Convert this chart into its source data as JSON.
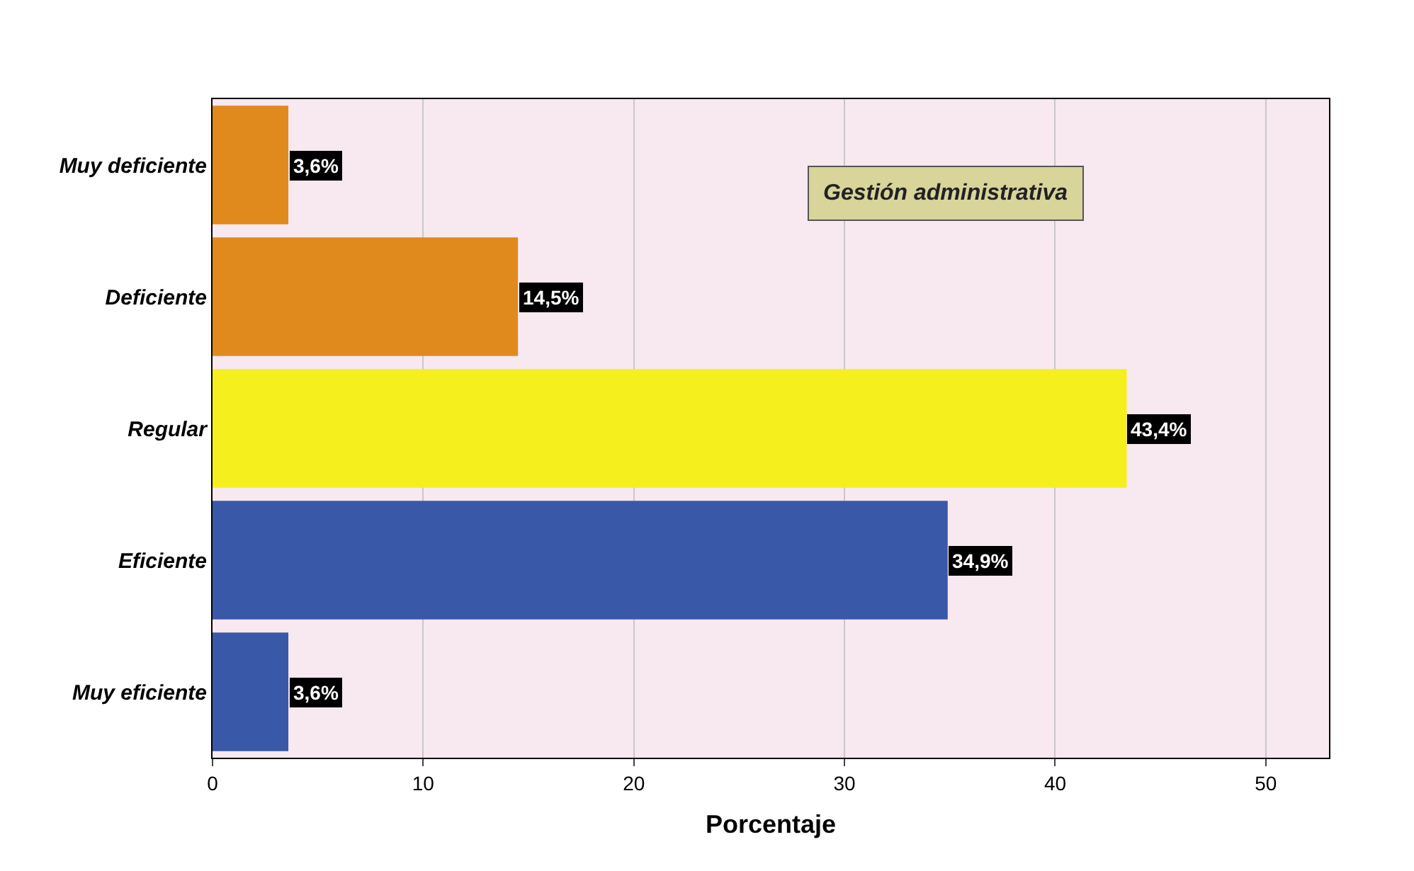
{
  "chart_data": {
    "type": "bar",
    "orientation": "horizontal",
    "xlabel": "Porcentaje",
    "categories": [
      "Muy deficiente",
      "Deficiente",
      "Regular",
      "Eficiente",
      "Muy eficiente"
    ],
    "values": [
      3.6,
      14.5,
      43.4,
      34.9,
      3.6
    ],
    "value_labels": [
      "3,6%",
      "14,5%",
      "43,4%",
      "34,9%",
      "3,6%"
    ],
    "colors": [
      "#e08a1e",
      "#e08a1e",
      "#f5ef1e",
      "#3a58a8",
      "#3a58a8"
    ],
    "xlim": [
      0,
      53
    ],
    "xticks": [
      0,
      10,
      20,
      30,
      40,
      50
    ],
    "grid": "x",
    "legend": false,
    "annotations": [
      "Gestión administrativa"
    ]
  }
}
